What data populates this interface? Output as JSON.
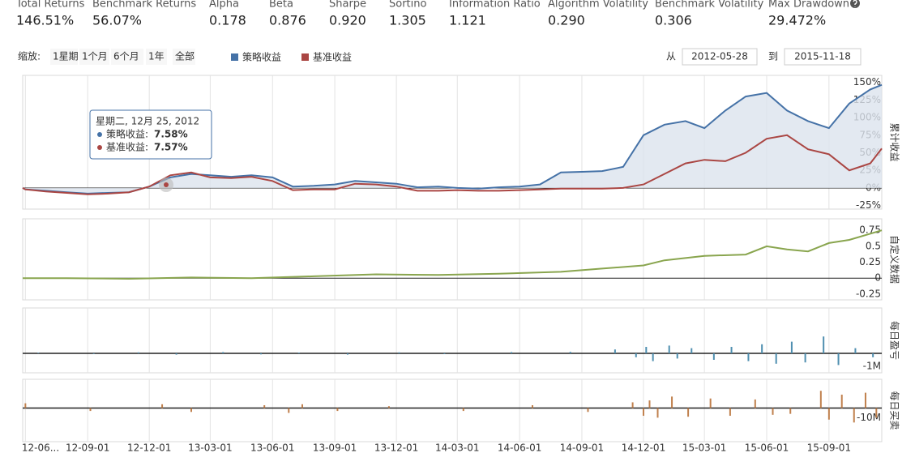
{
  "stats": [
    {
      "label": "Total Returns",
      "value": "146.51%"
    },
    {
      "label": "Benchmark Returns",
      "value": "56.07%"
    },
    {
      "label": "Alpha",
      "value": "0.178"
    },
    {
      "label": "Beta",
      "value": "0.876"
    },
    {
      "label": "Sharpe",
      "value": "0.920"
    },
    {
      "label": "Sortino",
      "value": "1.305"
    },
    {
      "label": "Information Ratio",
      "value": "1.121"
    },
    {
      "label": "Algorithm Volatility",
      "value": "0.290"
    },
    {
      "label": "Benchmark Volatility",
      "value": "0.306"
    },
    {
      "label": "Max Drawdown",
      "value": "29.472%"
    }
  ],
  "zoom": {
    "label": "缩放:",
    "buttons": [
      "1星期",
      "1个月",
      "6个月",
      "1年",
      "全部"
    ]
  },
  "range": {
    "from_label": "从",
    "from": "2012-05-28",
    "to_label": "到",
    "to": "2015-11-18"
  },
  "tooltip": {
    "title": "星期二, 12月 25, 2012",
    "rows": [
      {
        "label": "策略收益:",
        "value": "7.58%"
      },
      {
        "label": "基准收益:",
        "value": "7.57%"
      }
    ]
  },
  "chart_data": [
    {
      "type": "line",
      "area": true,
      "y_label": "累计收益",
      "xlim": [
        "12-05-28",
        "15-11-18"
      ],
      "ylim": [
        -30,
        160
      ],
      "yticks": [
        {
          "value": -25,
          "label": "-25%"
        },
        {
          "value": 0,
          "label": "0%"
        },
        {
          "value": 25,
          "label": "25%"
        },
        {
          "value": 50,
          "label": "50%"
        },
        {
          "value": 75,
          "label": "75%"
        },
        {
          "value": 100,
          "label": "100%"
        },
        {
          "value": 125,
          "label": "125%"
        },
        {
          "value": 150,
          "label": "150%"
        }
      ],
      "x": [
        "12-05-28",
        "12-06-01",
        "12-07-01",
        "12-08-01",
        "12-09-01",
        "12-10-01",
        "12-11-01",
        "12-12-01",
        "13-01-01",
        "13-02-01",
        "13-03-01",
        "13-04-01",
        "13-05-01",
        "13-06-01",
        "13-07-01",
        "13-08-01",
        "13-09-01",
        "13-10-01",
        "13-11-01",
        "13-12-01",
        "14-01-01",
        "14-02-01",
        "14-03-01",
        "14-04-01",
        "14-05-01",
        "14-06-01",
        "14-07-01",
        "14-08-01",
        "14-09-01",
        "14-10-01",
        "14-11-01",
        "14-12-01",
        "15-01-01",
        "15-02-01",
        "15-03-01",
        "15-04-01",
        "15-05-01",
        "15-06-01",
        "15-07-01",
        "15-08-01",
        "15-09-01",
        "15-10-01",
        "15-11-01",
        "15-11-18"
      ],
      "series": [
        {
          "name": "策略收益",
          "color": "#4572a7",
          "values": [
            0,
            -2,
            -4,
            -6,
            -8,
            -7,
            -6,
            2,
            15,
            20,
            18,
            16,
            18,
            15,
            2,
            3,
            5,
            10,
            8,
            6,
            1,
            2,
            0,
            -1,
            1,
            2,
            5,
            22,
            23,
            24,
            30,
            75,
            90,
            95,
            85,
            110,
            130,
            135,
            110,
            95,
            85,
            120,
            140,
            146.5
          ]
        },
        {
          "name": "基准收益",
          "color": "#aa4643",
          "values": [
            0,
            -2,
            -5,
            -7,
            -9,
            -8,
            -6,
            2,
            18,
            22,
            15,
            14,
            16,
            10,
            -3,
            -2,
            -2,
            6,
            5,
            2,
            -4,
            -4,
            -3,
            -4,
            -4,
            -3,
            -2,
            -1,
            -1,
            -1,
            0,
            5,
            20,
            35,
            40,
            38,
            50,
            70,
            75,
            55,
            48,
            25,
            35,
            56
          ]
        }
      ]
    },
    {
      "type": "line",
      "y_label": "自定义数据",
      "xlim": [
        "12-05-28",
        "15-11-18"
      ],
      "ylim": [
        -0.34,
        0.93
      ],
      "yticks": [
        -0.25,
        0,
        0.25,
        0.5,
        0.75
      ],
      "x": [
        "12-05-28",
        "12-08-01",
        "12-11-01",
        "13-02-01",
        "13-05-01",
        "13-08-01",
        "13-11-01",
        "14-02-01",
        "14-05-01",
        "14-08-01",
        "14-10-01",
        "14-12-01",
        "15-01-01",
        "15-03-01",
        "15-05-01",
        "15-06-01",
        "15-07-01",
        "15-08-01",
        "15-09-01",
        "15-10-01",
        "15-11-18"
      ],
      "series": [
        {
          "color": "#89a54e",
          "values": [
            0,
            0,
            -0.01,
            0.01,
            0,
            0.03,
            0.06,
            0.05,
            0.07,
            0.1,
            0.15,
            0.2,
            0.28,
            0.35,
            0.37,
            0.5,
            0.45,
            0.42,
            0.55,
            0.6,
            0.75
          ]
        }
      ]
    },
    {
      "type": "bar",
      "y_label": "每日盈亏",
      "color": "#4f8fb0",
      "xlim": [
        "12-05-28",
        "15-11-18"
      ],
      "ylim": [
        -1.5,
        3.5
      ],
      "yticks": [
        {
          "value": -1,
          "label": "-1M"
        }
      ],
      "x": [
        "12-06-20",
        "12-09-10",
        "12-11-15",
        "13-01-10",
        "13-03-20",
        "13-05-15",
        "13-07-10",
        "13-09-20",
        "13-12-05",
        "14-02-10",
        "14-05-20",
        "14-08-15",
        "14-10-20",
        "14-11-20",
        "14-12-05",
        "14-12-15",
        "15-01-08",
        "15-01-20",
        "15-02-10",
        "15-03-15",
        "15-04-10",
        "15-05-05",
        "15-05-25",
        "15-06-15",
        "15-07-08",
        "15-07-28",
        "15-08-24",
        "15-09-15",
        "15-10-10",
        "15-11-05"
      ],
      "values": [
        0.05,
        -0.05,
        0.08,
        -0.1,
        0.1,
        -0.08,
        0.06,
        -0.1,
        0.08,
        -0.06,
        0.1,
        0.12,
        0.3,
        -0.3,
        0.5,
        -0.6,
        0.6,
        -0.4,
        0.4,
        -0.5,
        0.5,
        -0.6,
        0.7,
        -0.8,
        0.9,
        -0.7,
        1.3,
        -0.9,
        0.4,
        -0.3
      ]
    },
    {
      "type": "bar",
      "y_label": "每日买卖",
      "color": "#c0804d",
      "xlim": [
        "12-05-28",
        "15-11-18"
      ],
      "ylim": [
        -35,
        30
      ],
      "yticks": [
        {
          "value": -10,
          "label": "-10M"
        }
      ],
      "xticks": [
        {
          "value": "12-06-01",
          "label": "12-06..."
        },
        "12-09-01",
        "12-12-01",
        "13-03-01",
        "13-06-01",
        "13-09-01",
        "13-12-01",
        "14-03-01",
        "14-06-01",
        "14-09-01",
        "14-12-01",
        "15-03-01",
        "15-06-01",
        "15-09-01"
      ],
      "x": [
        "12-06-01",
        "12-09-05",
        "12-12-20",
        "13-02-01",
        "13-05-20",
        "13-06-25",
        "13-07-15",
        "13-09-05",
        "13-11-20",
        "14-03-10",
        "14-06-20",
        "14-09-10",
        "14-11-15",
        "14-12-01",
        "14-12-10",
        "14-12-22",
        "15-01-12",
        "15-02-05",
        "15-03-10",
        "15-04-08",
        "15-05-15",
        "15-06-10",
        "15-07-06",
        "15-08-20",
        "15-09-01",
        "15-09-20",
        "15-10-08",
        "15-10-25",
        "15-11-10"
      ],
      "values": [
        5,
        -3,
        4,
        -4,
        3,
        -5,
        4,
        -3,
        2,
        -3,
        3,
        -4,
        6,
        -8,
        8,
        -10,
        12,
        -9,
        10,
        -8,
        9,
        -7,
        -6,
        18,
        -12,
        14,
        -15,
        16,
        -10
      ]
    }
  ]
}
